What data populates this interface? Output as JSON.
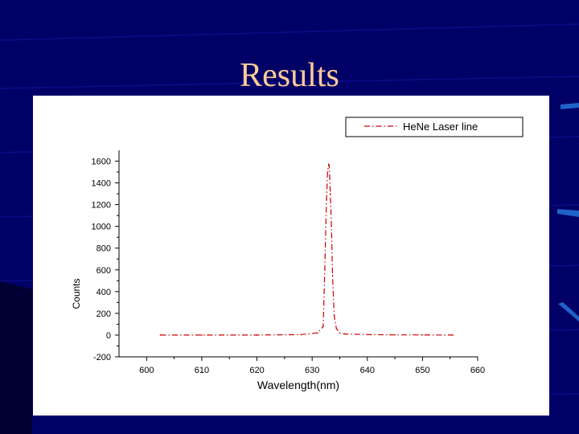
{
  "slide": {
    "title": "Results",
    "colors": {
      "background": "#000066",
      "title": "#ffcc99",
      "panel": "#ffffff",
      "series": "#cc0000",
      "accent_bars": "#1f62c8"
    }
  },
  "chart_data": {
    "type": "line",
    "title": "",
    "xlabel": "Wavelength(nm)",
    "ylabel": "Counts",
    "xlim": [
      595,
      660
    ],
    "ylim": [
      -200,
      1700
    ],
    "x_ticks": [
      600,
      610,
      620,
      630,
      640,
      650,
      660
    ],
    "y_ticks": [
      -200,
      0,
      200,
      400,
      600,
      800,
      1000,
      1200,
      1400,
      1600
    ],
    "grid": false,
    "legend": "top-right",
    "series": [
      {
        "name": "HeNe Laser line",
        "color": "#cc0000",
        "style": "dash-dot",
        "x": [
          602.5,
          610,
          620,
          628,
          631,
          632,
          632.3,
          632.6,
          632.8,
          633.0,
          633.1,
          633.3,
          633.5,
          633.7,
          634.0,
          634.4,
          635,
          636,
          640,
          645,
          650,
          655.5
        ],
        "y": [
          0,
          0,
          0,
          5,
          20,
          80,
          600,
          1250,
          1500,
          1570,
          1560,
          1300,
          1000,
          550,
          180,
          60,
          20,
          10,
          5,
          2,
          2,
          0
        ]
      }
    ]
  }
}
